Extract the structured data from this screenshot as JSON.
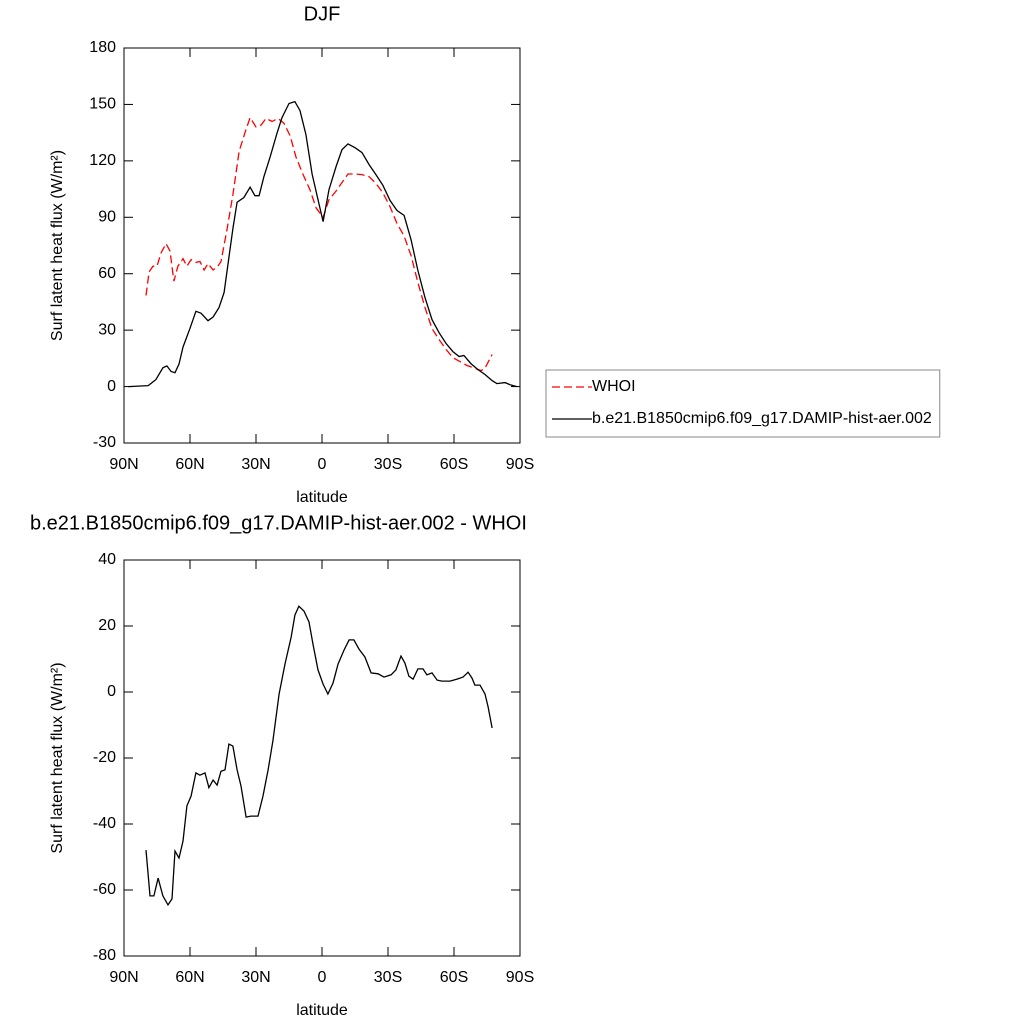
{
  "chart_data": [
    {
      "type": "line",
      "title": "DJF",
      "title_align": "center",
      "xlabel": "latitude",
      "ylabel": "Surf latent heat flux (W/m²)",
      "xlim": [
        90,
        -90
      ],
      "xticks": [
        {
          "value": 90,
          "label": "90N"
        },
        {
          "value": 60,
          "label": "60N"
        },
        {
          "value": 30,
          "label": "30N"
        },
        0,
        {
          "value": -30,
          "label": "30S"
        },
        {
          "value": -60,
          "label": "60S"
        },
        {
          "value": -90,
          "label": "90S"
        }
      ],
      "ylim": [
        -30,
        180
      ],
      "yticks": [
        -30,
        0,
        30,
        60,
        90,
        120,
        150,
        180
      ],
      "legend": "outside-right",
      "series": [
        {
          "name": "WHOI",
          "color": "#ff0000",
          "dash": true,
          "x": [
            80,
            78.6,
            76.8,
            75,
            73.2,
            70.9,
            69.1,
            67.3,
            65.5,
            63.2,
            61.4,
            59.5,
            57.3,
            55.5,
            53.6,
            51.8,
            49.5,
            47.3,
            45.9,
            43.2,
            40.5,
            37.7,
            35,
            32.7,
            30,
            27.7,
            25.5,
            22.7,
            20,
            17.3,
            14.5,
            11.8,
            8.6,
            5.5,
            2.7,
            -0.5,
            -3.2,
            -6.4,
            -9.1,
            -11.8,
            -15,
            -18.2,
            -21.4,
            -24.5,
            -27.7,
            -30.9,
            -34.1,
            -37.3,
            -40.5,
            -43.6,
            -46.8,
            -50,
            -53.2,
            -56.4,
            -59.5,
            -62.7,
            -65.9,
            -69,
            -72.3,
            -74,
            -77.3
          ],
          "values": [
            48.4,
            61,
            64,
            64,
            71,
            76,
            72,
            56,
            64,
            68,
            64,
            67.5,
            66,
            66.5,
            62,
            65.4,
            62,
            64,
            66.5,
            83.5,
            102,
            125,
            135,
            143,
            138,
            139,
            142.5,
            141,
            142.5,
            140,
            133.4,
            122,
            112.7,
            104.7,
            95,
            90,
            99.4,
            104,
            108.5,
            113,
            113,
            112.7,
            111.6,
            108,
            103,
            95.7,
            86.7,
            80,
            69.6,
            55.3,
            42,
            30.8,
            25,
            19.7,
            15.4,
            13.3,
            11.2,
            10,
            8.5,
            9.6,
            17
          ]
        },
        {
          "name": "b.e21.B1850cmip6.f09_g17.DAMIP-hist-aer.002",
          "color": "#000000",
          "dash": false,
          "x": [
            88.2,
            79,
            75.5,
            72.3,
            70.5,
            68.6,
            66.8,
            65,
            63.2,
            60,
            57.3,
            55,
            51.8,
            49.5,
            46.8,
            44.5,
            42.3,
            40.5,
            38.6,
            35.5,
            32.7,
            30.5,
            28.6,
            26.4,
            23.6,
            20.5,
            18.2,
            15,
            12.3,
            10,
            7.3,
            4.5,
            1.8,
            -0.5,
            -3.2,
            -6.4,
            -9.1,
            -11.8,
            -15,
            -18.2,
            -21.4,
            -24.5,
            -27.7,
            -30.9,
            -34.1,
            -37.3,
            -40.5,
            -43.6,
            -46.8,
            -50,
            -53.2,
            -56.4,
            -59.5,
            -62.3,
            -64.5,
            -67.7,
            -70.9,
            -74.1,
            -77.3,
            -79.5,
            -83.2,
            -85.5,
            -88.6
          ],
          "values": [
            0,
            0.5,
            3.7,
            10,
            11,
            8,
            7.4,
            12,
            21,
            31,
            40,
            39,
            35,
            37,
            42,
            50,
            68.6,
            84,
            98,
            100.5,
            106,
            101.5,
            101.5,
            111.6,
            122,
            134.5,
            143,
            150.5,
            151.5,
            146.7,
            134,
            113,
            99.4,
            87.7,
            104.7,
            117,
            126,
            129,
            127,
            124.4,
            118,
            112.7,
            107,
            99,
            93.6,
            91,
            78,
            61.7,
            47.3,
            35.6,
            28.7,
            22.9,
            18.6,
            16,
            16.5,
            12.2,
            9,
            6.4,
            3.2,
            1.6,
            2.1,
            1,
            0
          ]
        }
      ]
    },
    {
      "type": "line",
      "title": "b.e21.B1850cmip6.f09_g17.DAMIP-hist-aer.002 - WHOI",
      "title_align": "left",
      "xlabel": "latitude",
      "ylabel": "Surf latent heat flux (W/m²)",
      "xlim": [
        90,
        -90
      ],
      "xticks": [
        {
          "value": 90,
          "label": "90N"
        },
        {
          "value": 60,
          "label": "60N"
        },
        {
          "value": 30,
          "label": "30N"
        },
        0,
        {
          "value": -30,
          "label": "30S"
        },
        {
          "value": -60,
          "label": "60S"
        },
        {
          "value": -90,
          "label": "90S"
        }
      ],
      "ylim": [
        -80,
        40
      ],
      "yticks": [
        -80,
        -60,
        -40,
        -20,
        0,
        20,
        40
      ],
      "series": [
        {
          "color": "#000000",
          "dash": false,
          "x": [
            80,
            78.2,
            76.4,
            74.5,
            72.3,
            70,
            68.2,
            66.8,
            65,
            63.2,
            61.4,
            59.5,
            57.3,
            55.5,
            53.2,
            51.4,
            49.5,
            47.7,
            45.9,
            44.1,
            42.3,
            40.5,
            38.6,
            36.8,
            34.5,
            32.3,
            29.1,
            26.8,
            24.5,
            22.3,
            19.5,
            16.8,
            14,
            12.3,
            10.5,
            8.2,
            5.9,
            4.1,
            1.8,
            -0.5,
            -2.7,
            -5,
            -7.3,
            -10,
            -12.3,
            -14.5,
            -16.8,
            -19.5,
            -22.3,
            -25.5,
            -28.2,
            -31.4,
            -33.6,
            -35.9,
            -37.7,
            -39.5,
            -41.4,
            -43.6,
            -45.9,
            -47.7,
            -50,
            -52.3,
            -54.5,
            -58.2,
            -61.4,
            -64.1,
            -66.4,
            -68.2,
            -69.5,
            -71.8,
            -74.1,
            -75.5,
            -77.3
          ],
          "values": [
            -47.9,
            -61.8,
            -61.8,
            -56.4,
            -61.8,
            -64.5,
            -62.7,
            -48.2,
            -50.3,
            -45.2,
            -34.5,
            -31.5,
            -24.5,
            -25.2,
            -24.5,
            -29,
            -26.7,
            -28.2,
            -24,
            -23.6,
            -15.8,
            -16.4,
            -23.6,
            -28.5,
            -37.9,
            -37.6,
            -37.6,
            -31.5,
            -23.6,
            -14.8,
            -0.6,
            8.5,
            16.7,
            23.3,
            26,
            24.5,
            21.2,
            14.5,
            6.7,
            2.4,
            -0.6,
            2.7,
            8.5,
            12.7,
            15.8,
            15.8,
            13,
            10.6,
            5.8,
            5.5,
            4.5,
            5.2,
            6.7,
            10.9,
            8.8,
            4.8,
            3.9,
            7,
            7,
            5.2,
            5.8,
            3.6,
            3.3,
            3.3,
            3.9,
            4.5,
            6,
            4.2,
            2.1,
            2.1,
            -0.6,
            -4.5,
            -10.9
          ]
        }
      ]
    }
  ]
}
